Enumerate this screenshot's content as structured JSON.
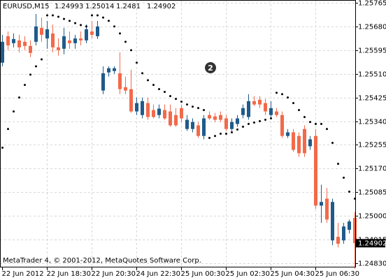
{
  "chart_data": {
    "type": "candlestick",
    "title": "EURUSD,M15",
    "footer": "MetaTrader 4, © 2001-2012, MetaQuotes Software Corp.",
    "badge": "2",
    "up_color": "#1f5b8b",
    "down_color": "#f26a4a",
    "sar_color": "#000000",
    "grid": true,
    "categories": [
      "22 Jun 2012",
      null,
      null,
      null,
      null,
      null,
      null,
      null,
      "22 Jun 18:30",
      null,
      null,
      null,
      null,
      null,
      null,
      null,
      "22 Jun 20:30",
      null,
      null,
      null,
      null,
      null,
      null,
      null,
      "24 Jun 22:30",
      null,
      null,
      null,
      null,
      null,
      null,
      null,
      "25 Jun 00:30",
      null,
      null,
      null,
      null,
      null,
      null,
      null,
      "25 Jun 02:30",
      null,
      null,
      null,
      null,
      null,
      null,
      null,
      "25 Jun 04:30",
      null,
      null,
      null,
      null,
      null,
      null,
      null,
      "25 Jun 06:30",
      null,
      null,
      null,
      null,
      null,
      null,
      null
    ],
    "open": [
      1.2555,
      1.25645,
      1.2562,
      1.2563,
      1.25625,
      1.2561,
      1.25625,
      1.25675,
      1.25637,
      1.25655,
      1.25605,
      1.256,
      1.2563,
      1.2562,
      1.25637,
      1.2563,
      1.25662,
      1.25645,
      1.2545,
      1.25515,
      1.2552,
      1.25512,
      1.25462,
      1.25455,
      1.25375,
      1.25362,
      1.25405,
      1.2538,
      1.25362,
      1.2538,
      1.25375,
      1.25362,
      1.25387,
      1.25312,
      1.25312,
      1.25325,
      1.25287,
      1.25362,
      1.25357,
      1.25362,
      1.2535,
      1.25312,
      1.2533,
      1.25362,
      1.25355,
      1.25412,
      1.25417,
      1.25405,
      1.25362,
      1.25375,
      1.25362,
      1.25287,
      1.253,
      1.25287,
      1.25312,
      1.2525,
      1.25287,
      1.25037,
      1.25062,
      1.24912,
      1.24925,
      1.24912,
      1.2495,
      1.24993
    ],
    "high": [
      1.2565,
      1.25662,
      1.25655,
      1.2565,
      1.25645,
      1.2563,
      1.25725,
      1.25712,
      1.257,
      1.25687,
      1.25637,
      1.25675,
      1.25662,
      1.2565,
      1.25662,
      1.25687,
      1.257,
      1.257,
      1.25537,
      1.25537,
      1.25537,
      1.25587,
      1.255,
      1.25525,
      1.25425,
      1.25425,
      1.25425,
      1.254,
      1.254,
      1.254,
      1.254,
      1.25387,
      1.254,
      1.25362,
      1.2535,
      1.25337,
      1.25362,
      1.25375,
      1.2537,
      1.25375,
      1.25362,
      1.2535,
      1.25362,
      1.254,
      1.25437,
      1.2543,
      1.2543,
      1.2542,
      1.25412,
      1.25387,
      1.25375,
      1.25312,
      1.25312,
      1.253,
      1.25325,
      1.25287,
      1.25312,
      1.25112,
      1.251,
      1.25062,
      1.24975,
      1.24975,
      1.24987,
      1.25014
    ],
    "low": [
      1.25537,
      1.25595,
      1.25605,
      1.25587,
      1.25595,
      1.2557,
      1.25612,
      1.25625,
      1.256,
      1.25587,
      1.25575,
      1.2558,
      1.256,
      1.256,
      1.25612,
      1.2562,
      1.25637,
      1.25635,
      1.25437,
      1.255,
      1.2551,
      1.25437,
      1.25437,
      1.2537,
      1.25362,
      1.2535,
      1.25345,
      1.2535,
      1.2535,
      1.25345,
      1.2532,
      1.2532,
      1.25337,
      1.25305,
      1.253,
      1.2528,
      1.25275,
      1.25345,
      1.25337,
      1.25337,
      1.25305,
      1.25305,
      1.2532,
      1.2535,
      1.25345,
      1.25395,
      1.25387,
      1.25362,
      1.25355,
      1.25355,
      1.2528,
      1.2528,
      1.2523,
      1.25212,
      1.25212,
      1.25237,
      1.25025,
      1.24975,
      1.24975,
      1.24895,
      1.24887,
      1.249,
      1.24937,
      1.2481
    ],
    "close": [
      1.25625,
      1.25612,
      1.25635,
      1.25605,
      1.2561,
      1.25585,
      1.2568,
      1.2565,
      1.2567,
      1.25605,
      1.25595,
      1.25645,
      1.2562,
      1.25637,
      1.2563,
      1.2567,
      1.2565,
      1.2568,
      1.25512,
      1.2553,
      1.2553,
      1.25455,
      1.2545,
      1.25375,
      1.25405,
      1.25412,
      1.25355,
      1.25355,
      1.25385,
      1.2535,
      1.25325,
      1.25325,
      1.2535,
      1.25345,
      1.25337,
      1.25287,
      1.2535,
      1.2535,
      1.25345,
      1.25345,
      1.25312,
      1.25337,
      1.2535,
      1.25387,
      1.25412,
      1.254,
      1.254,
      1.25375,
      1.25387,
      1.25362,
      1.25287,
      1.253,
      1.25237,
      1.25225,
      1.25225,
      1.25275,
      1.25037,
      1.2505,
      1.24987,
      1.2505,
      1.249,
      1.24962,
      1.2498,
      1.24902
    ],
    "sar": [
      1.25245,
      1.25312,
      1.25375,
      1.25425,
      1.2547,
      1.25507,
      1.25537,
      1.25562,
      1.2572,
      1.2572,
      1.25715,
      1.25707,
      1.257,
      1.25692,
      1.25685,
      1.2568,
      1.2572,
      1.2572,
      1.25712,
      1.257,
      1.2568,
      1.25655,
      1.25625,
      1.25595,
      1.2555,
      1.25512,
      1.25487,
      1.2547,
      1.25455,
      1.25445,
      1.2543,
      1.2542,
      1.2541,
      1.254,
      1.25392,
      1.25387,
      1.2538,
      1.2528,
      1.25287,
      1.25295,
      1.25295,
      1.253,
      1.2531,
      1.2532,
      1.2533,
      1.25335,
      1.2534,
      1.25345,
      1.2535,
      1.25442,
      1.25437,
      1.25425,
      1.25405,
      1.2538,
      1.25355,
      1.25337,
      1.2533,
      1.2533,
      1.25312,
      1.25262,
      1.25187,
      1.25137,
      1.25087,
      1.25062
    ],
    "ylim": [
      1.24815,
      1.25775
    ],
    "yticks": [
      1.25765,
      {
        "value": 1.2568,
        "label": "1.25680"
      },
      1.25595,
      {
        "value": 1.2551,
        "label": "1.25510"
      },
      1.25425,
      {
        "value": 1.2534,
        "label": "1.25340"
      },
      1.25255,
      {
        "value": 1.2517,
        "label": "1.25170"
      },
      1.25085,
      {
        "value": 1.25,
        "label": "1.25000"
      },
      1.24915,
      {
        "value": 1.2483,
        "label": "1.24830"
      }
    ]
  }
}
